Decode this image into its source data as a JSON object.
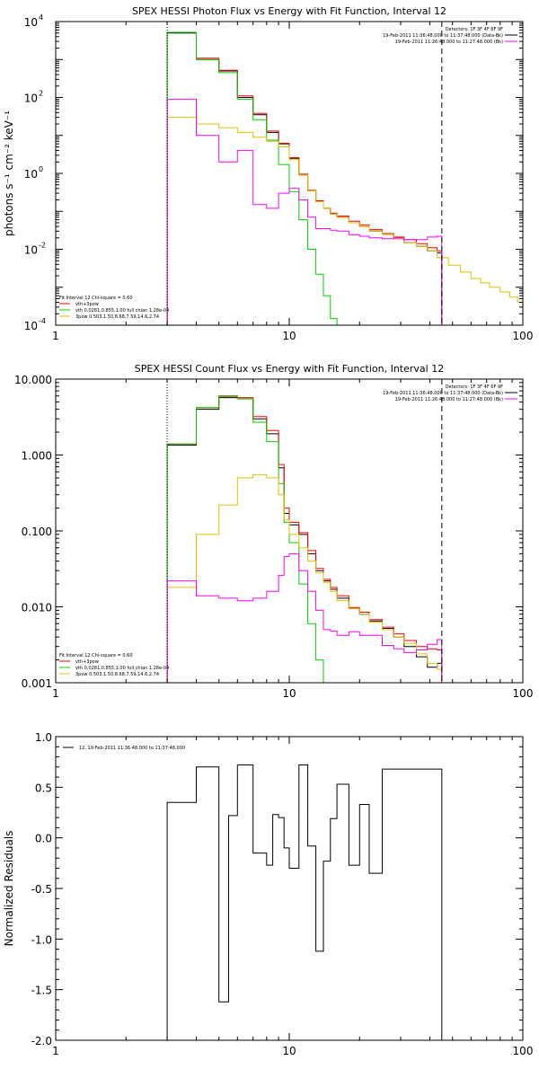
{
  "chart_data": [
    {
      "type": "line",
      "title": "SPEX HESSI Photon Flux vs Energy with Fit Function, Interval 12",
      "ylabel": "photons s⁻¹ cm⁻² keV⁻¹",
      "xlabel": "",
      "xscale": "log",
      "yscale": "log",
      "xlim": [
        1,
        100
      ],
      "ylim": [
        0.0001,
        10000
      ],
      "xticks": [
        {
          "v": 1,
          "label": "1"
        },
        {
          "v": 10,
          "label": "10"
        },
        {
          "v": 100,
          "label": "100"
        }
      ],
      "yticks": [
        {
          "v": 0.0001,
          "base": "10",
          "exp": "-4"
        },
        {
          "v": 0.01,
          "base": "10",
          "exp": "-2"
        },
        {
          "v": 1,
          "base": "10",
          "exp": "0"
        },
        {
          "v": 100,
          "base": "10",
          "exp": "2"
        },
        {
          "v": 10000,
          "base": "10",
          "exp": "4"
        }
      ],
      "vlines": [
        {
          "x": 3.0,
          "style": "dotted"
        },
        {
          "x": 45.0,
          "style": "dashed"
        }
      ],
      "legend_top_right": [
        {
          "text": "Detectors: 1F 3F 4F 6F 9F",
          "color": ""
        },
        {
          "text": "19-Feb-2011 11:36:48.000 to 11:37:48.000 (Data-Bk)",
          "color": "#000000"
        },
        {
          "text": "19-Feb-2011 11:26:48.000 to 11:27:48.000 (Bk)",
          "color": "#ff00ff"
        }
      ],
      "legend_bottom_left": [
        {
          "text": "Fit Interval 12   Chi-square = 0.60",
          "color": ""
        },
        {
          "text": "vth+3pow",
          "color": "#ff0000"
        },
        {
          "text": "vth 0.0281,0.855,1.00  full chian 1.28e-04",
          "color": "#00d000"
        },
        {
          "text": "3pow 0.503,1.50,8.68,7.59,14.6,2.74",
          "color": "#e0c000"
        }
      ],
      "series": [
        {
          "color": "#000000",
          "edges": [
            3.0,
            4.0,
            5.0,
            6.0,
            7.0,
            8.0,
            9.0,
            10.0,
            11.0,
            12.0,
            13.0,
            14.0,
            15.0,
            16.0,
            18.0,
            20.0,
            22.0,
            25.0,
            28.0,
            31.0,
            35.0,
            39.0,
            43.0,
            45.0
          ],
          "values": [
            5000,
            1000,
            500,
            100,
            35,
            12,
            6,
            2.5,
            0.9,
            0.35,
            0.18,
            0.12,
            0.085,
            0.07,
            0.05,
            0.04,
            0.03,
            0.025,
            0.019,
            0.015,
            0.012,
            0.009,
            0.008
          ]
        },
        {
          "color": "#ff0000",
          "edges": [
            3.0,
            4.0,
            5.0,
            6.0,
            7.0,
            8.0,
            9.0,
            10.0,
            11.0,
            12.0,
            13.0,
            14.0,
            15.0,
            16.0,
            18.0,
            20.0,
            22.0,
            25.0,
            28.0,
            31.0,
            35.0,
            39.0,
            43.0,
            45.0
          ],
          "values": [
            5200,
            1080,
            520,
            110,
            38,
            13,
            6.2,
            2.6,
            0.95,
            0.36,
            0.19,
            0.12,
            0.09,
            0.075,
            0.055,
            0.044,
            0.033,
            0.026,
            0.021,
            0.018,
            0.014,
            0.011,
            0.009
          ]
        },
        {
          "color": "#00d000",
          "edges": [
            3.0,
            4.0,
            5.0,
            6.0,
            7.0,
            8.0,
            9.0,
            10.0,
            11.0,
            12.0,
            13.0,
            14.0,
            15.0,
            16.0
          ],
          "values": [
            5200,
            1000,
            450,
            90,
            26,
            7.5,
            1.7,
            0.33,
            0.06,
            0.01,
            0.0022,
            0.0006,
            0.00015
          ]
        },
        {
          "color": "#e0c000",
          "edges": [
            3.0,
            4.0,
            5.0,
            6.0,
            7.0,
            8.0,
            9.0,
            10.0,
            11.0,
            12.0,
            13.0,
            14.0,
            15.0,
            16.0,
            18.0,
            20.0,
            22.0,
            25.0,
            28.0,
            31.0,
            35.0,
            39.0,
            43.0,
            48.0,
            54.0,
            60.0,
            66.0,
            72.0,
            80.0,
            88.0,
            95.0,
            100.0
          ],
          "values": [
            30,
            20,
            16,
            12,
            9,
            7,
            5,
            2.3,
            0.9,
            0.35,
            0.18,
            0.12,
            0.085,
            0.07,
            0.05,
            0.04,
            0.03,
            0.025,
            0.019,
            0.015,
            0.012,
            0.009,
            0.006,
            0.0038,
            0.0025,
            0.0017,
            0.0013,
            0.001,
            0.00075,
            0.00055,
            0.0004
          ]
        },
        {
          "color": "#ff00ff",
          "edges": [
            3.0,
            4.0,
            5.0,
            6.0,
            7.0,
            8.0,
            9.0,
            10.0,
            11.0,
            12.0,
            13.0,
            14.0,
            15.0,
            16.0,
            18.0,
            20.0,
            22.0,
            25.0,
            28.0,
            31.0,
            35.0,
            39.0,
            43.0,
            45.0
          ],
          "values": [
            90,
            10,
            2,
            4,
            0.15,
            0.12,
            0.3,
            0.4,
            0.2,
            0.07,
            0.035,
            0.035,
            0.032,
            0.03,
            0.024,
            0.022,
            0.02,
            0.019,
            0.02,
            0.018,
            0.018,
            0.021,
            0.022
          ]
        }
      ]
    },
    {
      "type": "line",
      "title": "SPEX HESSI Count Flux vs Energy with Fit Function, Interval 12",
      "ylabel": "",
      "xlabel": "",
      "xscale": "log",
      "yscale": "log",
      "xlim": [
        1,
        100
      ],
      "ylim": [
        0.001,
        10
      ],
      "xticks": [
        {
          "v": 1,
          "label": "1"
        },
        {
          "v": 10,
          "label": "10"
        },
        {
          "v": 100,
          "label": "100"
        }
      ],
      "yticks": [
        {
          "v": 0.001,
          "label": "0.001"
        },
        {
          "v": 0.01,
          "label": "0.010"
        },
        {
          "v": 0.1,
          "label": "0.100"
        },
        {
          "v": 1,
          "label": "1.000"
        },
        {
          "v": 10,
          "label": "10.000"
        }
      ],
      "vlines": [
        {
          "x": 3.0,
          "style": "dotted"
        },
        {
          "x": 45.0,
          "style": "dashed"
        }
      ],
      "legend_top_right": [
        {
          "text": "Detectors: 1F 3F 4F 6F 9F",
          "color": ""
        },
        {
          "text": "19-Feb-2011 11:36:48.000 to 11:37:48.000 (Data-Bk)",
          "color": "#000000"
        },
        {
          "text": "19-Feb-2011 11:26:48.000 to 11:27:48.000 (Bk)",
          "color": "#ff00ff"
        }
      ],
      "legend_bottom_left": [
        {
          "text": "Fit Interval 12   Chi-square = 0.60",
          "color": ""
        },
        {
          "text": "vth+3pow",
          "color": "#ff0000"
        },
        {
          "text": "vth 0.0281,0.855,1.00  full chian 1.28e-04",
          "color": "#00d000"
        },
        {
          "text": "3pow 0.503,1.50,8.68,7.59,14.6,2.74",
          "color": "#e0c000"
        }
      ],
      "series": [
        {
          "color": "#000000",
          "edges": [
            3.0,
            4.0,
            5.0,
            6.0,
            7.0,
            8.0,
            9.0,
            9.5,
            10.0,
            11.0,
            12.0,
            13.0,
            14.0,
            15.0,
            16.0,
            18.0,
            20.0,
            22.0,
            25.0,
            28.0,
            31.0,
            35.0,
            39.0,
            43.0,
            45.0
          ],
          "values": [
            1.35,
            4.0,
            5.7,
            5.5,
            3.0,
            1.9,
            0.68,
            0.17,
            0.12,
            0.09,
            0.05,
            0.03,
            0.022,
            0.017,
            0.013,
            0.0095,
            0.008,
            0.0065,
            0.0052,
            0.004,
            0.003,
            0.0022,
            0.0016,
            0.0018
          ]
        },
        {
          "color": "#ff0000",
          "edges": [
            3.0,
            4.0,
            5.0,
            6.0,
            7.0,
            8.0,
            9.0,
            9.5,
            10.0,
            11.0,
            12.0,
            13.0,
            14.0,
            15.0,
            16.0,
            18.0,
            20.0,
            22.0,
            25.0,
            28.0,
            31.0,
            35.0,
            39.0,
            43.0,
            45.0
          ],
          "values": [
            1.4,
            4.2,
            6.0,
            5.7,
            3.2,
            2.1,
            0.75,
            0.2,
            0.13,
            0.095,
            0.055,
            0.032,
            0.023,
            0.018,
            0.014,
            0.0098,
            0.0085,
            0.0068,
            0.0054,
            0.0044,
            0.0036,
            0.003,
            0.0028,
            0.0027
          ]
        },
        {
          "color": "#00d000",
          "edges": [
            3.0,
            4.0,
            5.0,
            6.0,
            7.0,
            8.0,
            9.0,
            9.5,
            10.0,
            11.0,
            12.0,
            13.0,
            14.0
          ],
          "values": [
            1.4,
            4.2,
            5.9,
            5.5,
            2.7,
            1.5,
            0.42,
            0.13,
            0.07,
            0.02,
            0.006,
            0.002
          ]
        },
        {
          "color": "#e0c000",
          "edges": [
            3.0,
            4.0,
            5.0,
            6.0,
            7.0,
            8.0,
            9.0,
            9.5,
            10.0,
            11.0,
            12.0,
            13.0,
            14.0,
            15.0,
            16.0,
            18.0,
            20.0,
            22.0,
            25.0,
            28.0,
            31.0,
            35.0,
            39.0,
            43.0,
            45.0
          ],
          "values": [
            0.018,
            0.09,
            0.22,
            0.5,
            0.55,
            0.5,
            0.3,
            0.14,
            0.09,
            0.06,
            0.04,
            0.028,
            0.021,
            0.016,
            0.012,
            0.0095,
            0.008,
            0.0063,
            0.005,
            0.004,
            0.0033,
            0.0024,
            0.0018,
            0.0015
          ]
        },
        {
          "color": "#ff00ff",
          "edges": [
            3.0,
            4.0,
            5.0,
            6.0,
            7.0,
            8.0,
            9.0,
            9.5,
            10.0,
            11.0,
            12.0,
            13.0,
            14.0,
            15.0,
            16.0,
            18.0,
            20.0,
            22.0,
            25.0,
            28.0,
            31.0,
            35.0,
            39.0,
            43.0,
            45.0
          ],
          "values": [
            0.022,
            0.014,
            0.013,
            0.012,
            0.013,
            0.016,
            0.026,
            0.046,
            0.05,
            0.03,
            0.016,
            0.009,
            0.005,
            0.0048,
            0.0042,
            0.0047,
            0.0042,
            0.0042,
            0.0031,
            0.0028,
            0.0025,
            0.0027,
            0.0032,
            0.0037
          ]
        }
      ]
    },
    {
      "type": "line",
      "title": "",
      "ylabel": "Normalized Residuals",
      "xlabel": "",
      "xscale": "log",
      "yscale": "linear",
      "xlim": [
        1,
        100
      ],
      "ylim": [
        -2.0,
        1.0
      ],
      "xticks": [
        {
          "v": 1,
          "label": "1"
        },
        {
          "v": 10,
          "label": "10"
        },
        {
          "v": 100,
          "label": "100"
        }
      ],
      "yticks": [
        {
          "v": -2.0,
          "label": "-2.0"
        },
        {
          "v": -1.5,
          "label": "-1.5"
        },
        {
          "v": -1.0,
          "label": "-1.0"
        },
        {
          "v": -0.5,
          "label": "-0.5"
        },
        {
          "v": 0.0,
          "label": "0.0"
        },
        {
          "v": 0.5,
          "label": "0.5"
        },
        {
          "v": 1.0,
          "label": "1.0"
        }
      ],
      "legend_top_left": [
        {
          "text": "12, 19-Feb-2011 11:36:48.000 to 11:37:48.000",
          "color": "#000000"
        }
      ],
      "series": [
        {
          "color": "#000000",
          "edges": [
            3.0,
            4.0,
            5.0,
            5.5,
            6.0,
            7.0,
            8.0,
            8.5,
            9.0,
            9.5,
            10.0,
            11.0,
            12.0,
            13.0,
            14.0,
            15.0,
            16.0,
            18.0,
            20.0,
            22.0,
            25.0,
            28.0,
            31.0,
            35.0,
            39.0,
            43.0,
            45.0
          ],
          "values": [
            0.35,
            0.7,
            -1.62,
            0.22,
            0.72,
            -0.15,
            -0.27,
            0.23,
            0.2,
            -0.1,
            -0.3,
            0.72,
            -0.08,
            -1.12,
            -0.23,
            0.19,
            0.53,
            -0.27,
            0.33,
            -0.35,
            0.68,
            0.68,
            0.68,
            0.68,
            0.68,
            0.68
          ]
        }
      ]
    }
  ]
}
